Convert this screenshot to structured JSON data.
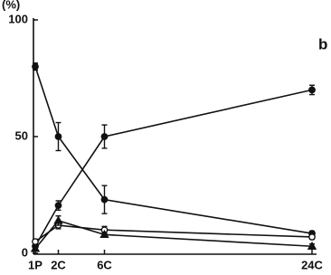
{
  "chart_data": {
    "type": "line",
    "y_unit": "(%)",
    "panel_label": "b",
    "x": [
      0,
      2,
      6,
      24
    ],
    "xlim": [
      0,
      24
    ],
    "xticks": [
      {
        "value": 0,
        "label": "1P"
      },
      {
        "value": 2,
        "label": "2C"
      },
      {
        "value": 6,
        "label": "6C"
      },
      {
        "value": 24,
        "label": "24C"
      }
    ],
    "ylim": [
      0,
      100
    ],
    "yticks": [
      0,
      50,
      100
    ],
    "series": [
      {
        "color": "#111111",
        "marker": "circle",
        "values": [
          80,
          50,
          23,
          8.5
        ],
        "errors": [
          1.5,
          6,
          6,
          1
        ]
      },
      {
        "color": "#111111",
        "marker": "circle",
        "values": [
          3,
          20.5,
          50,
          70
        ],
        "errors": [
          1,
          2,
          5,
          2
        ]
      },
      {
        "color": "#111111",
        "marker": "open-circle",
        "values": [
          5,
          12,
          10,
          7
        ],
        "errors": [
          1,
          1.5,
          1.5,
          1
        ]
      },
      {
        "color": "#111111",
        "marker": "triangle",
        "values": [
          2,
          14,
          8,
          3
        ],
        "errors": [
          1,
          2,
          1,
          1
        ]
      }
    ]
  }
}
